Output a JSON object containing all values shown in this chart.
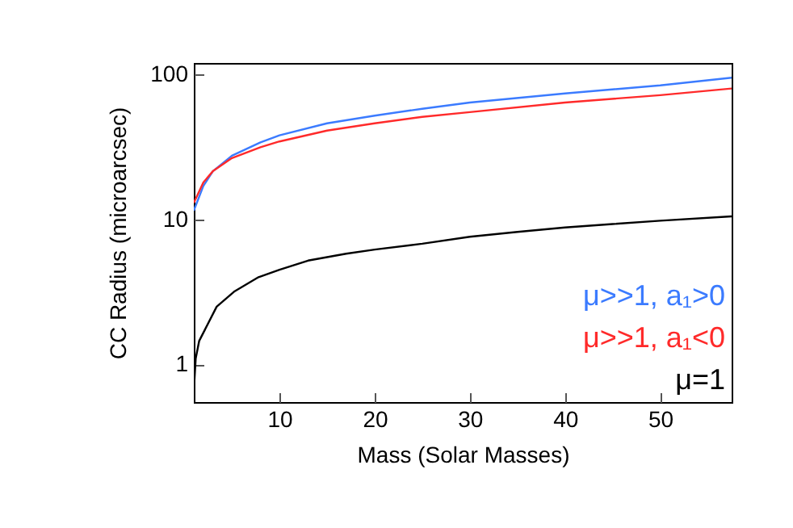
{
  "chart_data": {
    "type": "line",
    "xlabel": "Mass (Solar Masses)",
    "ylabel": "CC Radius (microarcsec)",
    "log": "y",
    "xlim": [
      1,
      57.5
    ],
    "ylim": [
      0.55,
      120
    ],
    "xticks": [
      10,
      20,
      30,
      40,
      50
    ],
    "yticks": [
      1,
      10,
      100
    ],
    "legend": "bottom right",
    "grid": false,
    "series": [
      {
        "name": "μ>>1, a₁>0",
        "color": "#3b7bff",
        "x": [
          1,
          2,
          3,
          5,
          8,
          10,
          15,
          20,
          25,
          30,
          40,
          50,
          57.5
        ],
        "values": [
          11.5,
          17,
          21.5,
          27.5,
          34,
          38,
          46,
          52,
          58,
          64,
          74,
          84,
          95
        ]
      },
      {
        "name": "μ>>1, a₁<0",
        "color": "#ff2a2a",
        "x": [
          1,
          2,
          3,
          5,
          8,
          10,
          15,
          20,
          25,
          30,
          40,
          50,
          57.5
        ],
        "values": [
          13,
          18,
          21.5,
          26.5,
          31.5,
          34.5,
          41,
          46,
          51,
          55,
          64,
          72,
          80
        ]
      },
      {
        "name": "μ=1",
        "color": "#000000",
        "x": [
          1,
          1.2,
          1.56,
          3.4,
          5.3,
          7.8,
          10,
          13,
          17,
          20,
          25,
          30,
          35,
          40,
          45,
          50,
          57.5
        ],
        "values": [
          0.65,
          1.1,
          1.45,
          2.5,
          3.2,
          4.0,
          4.5,
          5.2,
          5.8,
          6.2,
          6.8,
          7.6,
          8.2,
          8.8,
          9.3,
          9.8,
          10.5
        ]
      }
    ]
  }
}
